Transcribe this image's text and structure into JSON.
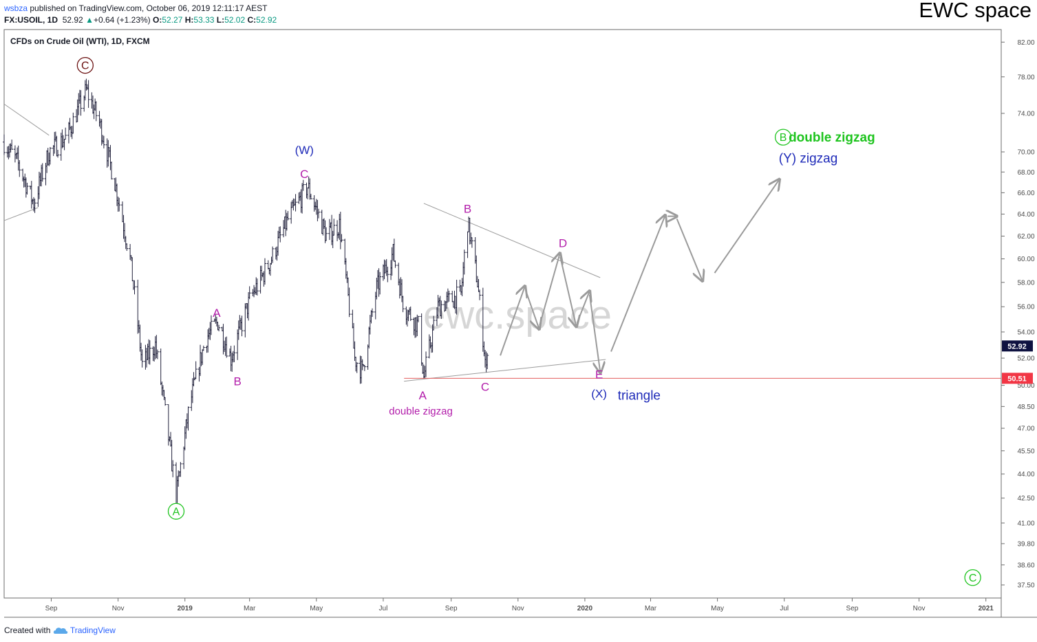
{
  "header": {
    "user": "wsbza",
    "published_text": "published on TradingView.com, October 06, 2019 12:11:17 AEST",
    "symbol": "FX:USOIL, 1D",
    "last": "52.92",
    "change": "+0.64 (+1.23%)",
    "o_label": "O:",
    "o_value": "52.27",
    "h_label": "H:",
    "h_value": "53.33",
    "l_label": "L:",
    "l_value": "52.02",
    "c_label": "C:",
    "c_value": "52.92",
    "up_arrow": "▲"
  },
  "brand": "EWC space",
  "watermark": "ewc.space",
  "footer": {
    "created": "Created with",
    "logo": "TradingView",
    "logo_icon": "tradingview-cloud-icon"
  },
  "colors": {
    "candle": "#1f1f3a",
    "magenta": "#b21caa",
    "blue": "#1e2ab8",
    "green": "#1ec41e",
    "dark_red": "#6b1111",
    "gray": "#9a9a9a",
    "level_line": "#e35c5c",
    "price_tag": "#0e1140",
    "level_tag": "#f23645"
  },
  "chart_data": {
    "type": "ohlc",
    "title": "CFDs on Crude Oil (WTI), 1D, FXCM",
    "instrument": "FX:USOIL",
    "y_scale": "log",
    "ylim": [
      36.8,
      83.5
    ],
    "y_ticks": [
      "82.00",
      "78.00",
      "74.00",
      "70.00",
      "68.00",
      "66.00",
      "64.00",
      "62.00",
      "60.00",
      "58.00",
      "56.00",
      "54.00",
      "52.00",
      "50.00",
      "48.50",
      "47.00",
      "45.50",
      "44.00",
      "42.50",
      "41.00",
      "39.80",
      "38.60",
      "37.50"
    ],
    "x_labels": [
      "Sep",
      "Nov",
      "2019",
      "Mar",
      "May",
      "Jul",
      "Sep",
      "Nov",
      "2020",
      "Mar",
      "May",
      "Jul",
      "Sep",
      "Nov",
      "2021"
    ],
    "last_price": "52.92",
    "level_line": "50.51",
    "price_path": [
      [
        "2018-07-20",
        71.0
      ],
      [
        "2018-08-01",
        69.0
      ],
      [
        "2018-08-16",
        65.0
      ],
      [
        "2018-08-30",
        70.0
      ],
      [
        "2018-09-15",
        71.5
      ],
      [
        "2018-10-03",
        76.5
      ],
      [
        "2018-10-15",
        73.0
      ],
      [
        "2018-10-29",
        67.0
      ],
      [
        "2018-11-12",
        60.0
      ],
      [
        "2018-11-23",
        51.5
      ],
      [
        "2018-12-05",
        53.0
      ],
      [
        "2018-12-24",
        42.5
      ],
      [
        "2019-01-05",
        48.5
      ],
      [
        "2019-01-20",
        53.5
      ],
      [
        "2019-01-31",
        54.8
      ],
      [
        "2019-02-12",
        52.0
      ],
      [
        "2019-03-01",
        56.5
      ],
      [
        "2019-03-20",
        59.8
      ],
      [
        "2019-04-05",
        63.5
      ],
      [
        "2019-04-23",
        66.6
      ],
      [
        "2019-05-10",
        62.0
      ],
      [
        "2019-05-22",
        63.0
      ],
      [
        "2019-06-05",
        52.0
      ],
      [
        "2019-06-12",
        51.0
      ],
      [
        "2019-06-25",
        57.5
      ],
      [
        "2019-07-10",
        60.5
      ],
      [
        "2019-07-20",
        56.0
      ],
      [
        "2019-08-02",
        54.5
      ],
      [
        "2019-08-07",
        50.6
      ],
      [
        "2019-08-20",
        56.0
      ],
      [
        "2019-09-10",
        57.0
      ],
      [
        "2019-09-16",
        63.3
      ],
      [
        "2019-09-25",
        58.0
      ],
      [
        "2019-10-03",
        51.0
      ],
      [
        "2019-10-04",
        52.92
      ]
    ],
    "series": [
      {
        "name": "projection",
        "points": [
          [
            "2019-10-15",
            52.0
          ],
          [
            "2019-11-07",
            57.6
          ],
          [
            "2019-11-20",
            54.3
          ],
          [
            "2019-12-09",
            60.4
          ],
          [
            "2019-12-24",
            54.5
          ],
          [
            "2020-01-05",
            57.2
          ],
          [
            "2020-01-15",
            51.0
          ]
        ]
      },
      {
        "name": "projection",
        "points": [
          [
            "2020-01-24",
            52.3
          ],
          [
            "2020-03-14",
            63.8
          ],
          [
            "2020-03-24",
            63.8
          ],
          [
            "2020-04-17",
            58.2
          ]
        ]
      },
      {
        "name": "projection",
        "points": [
          [
            "2020-04-27",
            58.6
          ],
          [
            "2020-06-26",
            67.2
          ]
        ]
      }
    ],
    "trendlines": [
      {
        "from": [
          "2018-07-20",
          75.0
        ],
        "to": [
          "2018-08-30",
          71.7
        ]
      },
      {
        "from": [
          "2018-07-20",
          63.4
        ],
        "to": [
          "2018-08-20",
          64.6
        ]
      },
      {
        "from": [
          "2019-08-07",
          65.0
        ],
        "to": [
          "2020-01-15",
          58.4
        ]
      },
      {
        "from": [
          "2019-07-20",
          50.3
        ],
        "to": [
          "2020-01-20",
          51.9
        ]
      }
    ],
    "annotations": [
      {
        "text": "C",
        "circled": true,
        "color": "dark_red",
        "at": [
          "2018-10-02",
          79.3
        ]
      },
      {
        "text": "(W)",
        "color": "blue",
        "at": [
          "2019-04-20",
          70.2
        ]
      },
      {
        "text": "C",
        "color": "magenta",
        "at": [
          "2019-04-20",
          67.8
        ]
      },
      {
        "text": "A",
        "color": "magenta",
        "at": [
          "2019-01-30",
          55.5
        ]
      },
      {
        "text": "B",
        "color": "magenta",
        "at": [
          "2019-02-18",
          50.3
        ]
      },
      {
        "text": "A",
        "circled": true,
        "color": "green",
        "at": [
          "2018-12-24",
          41.7
        ]
      },
      {
        "text": "B",
        "color": "magenta",
        "at": [
          "2019-09-16",
          64.5
        ]
      },
      {
        "text": "D",
        "color": "magenta",
        "at": [
          "2019-12-12",
          61.4
        ]
      },
      {
        "text": "A",
        "color": "magenta",
        "at": [
          "2019-08-06",
          49.3
        ]
      },
      {
        "text": "C",
        "color": "magenta",
        "at": [
          "2019-10-02",
          49.9
        ]
      },
      {
        "text": "double zigzag",
        "color": "magenta",
        "at": [
          "2019-08-06",
          48.2
        ]
      },
      {
        "text": "E",
        "color": "magenta",
        "at": [
          "2020-01-14",
          50.8
        ]
      },
      {
        "text": "(X)",
        "color": "blue",
        "at": [
          "2020-01-14",
          49.4
        ]
      },
      {
        "text": "triangle",
        "color": "blue",
        "at": [
          "2020-01-31",
          49.3
        ]
      },
      {
        "text": "B",
        "circled": true,
        "color": "green",
        "at": [
          "2020-06-30",
          71.5
        ]
      },
      {
        "text": "double zigzag",
        "color": "green",
        "at": [
          "2020-07-05",
          71.5
        ]
      },
      {
        "text": "(Y) zigzag",
        "color": "blue",
        "at": [
          "2020-06-26",
          69.4
        ]
      },
      {
        "text": "C",
        "circled": true,
        "color": "green",
        "at": [
          "2020-12-20",
          37.9
        ]
      }
    ]
  }
}
